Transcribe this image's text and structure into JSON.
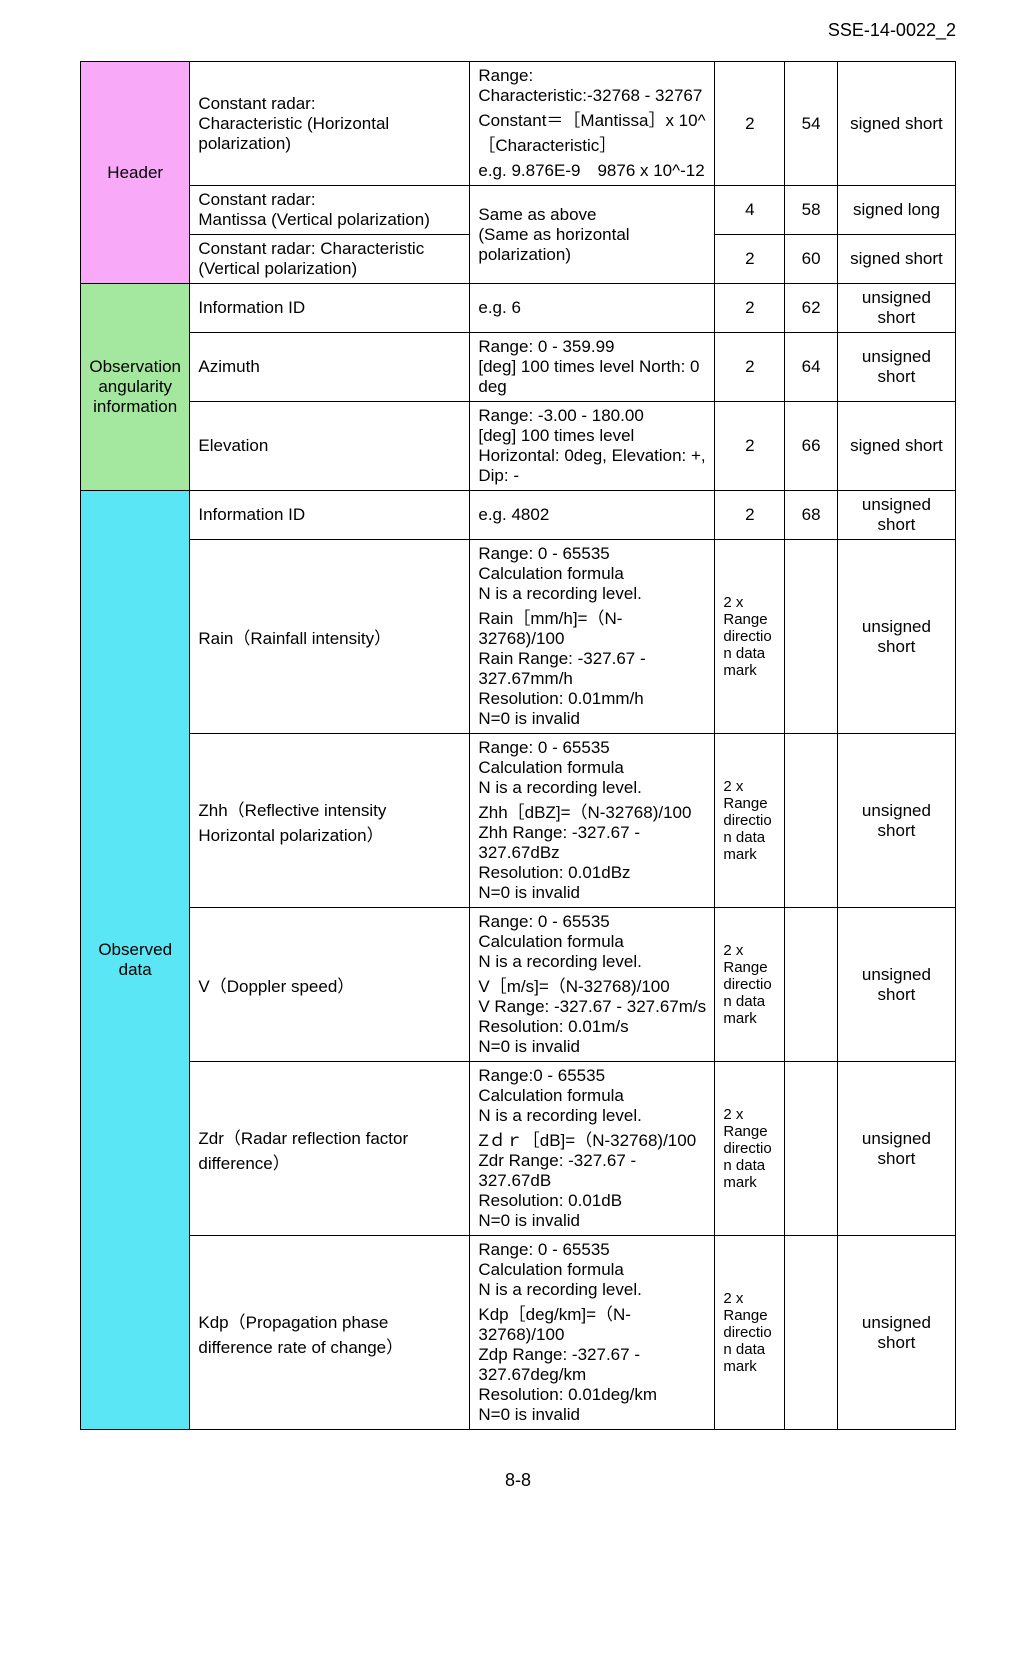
{
  "doc_id": "SSE-14-0022_2",
  "page_number": "8-8",
  "sections": {
    "header": {
      "label": "Header",
      "bg": "#f8a9f8",
      "rows": [
        {
          "param": "Constant radar:\nCharacteristic (Horizontal polarization)",
          "desc": "Range:\nCharacteristic:-32768 - 32767\nConstant＝［Mantissa］x 10^［Characteristic］\ne.g. 9.876E-9　9876 x 10^-12",
          "size": "2",
          "offset": "54",
          "type": "signed short"
        },
        {
          "param": "Constant radar:\nMantissa (Vertical polarization)",
          "desc_rowspan": true,
          "desc": "Same as above\n(Same as horizontal polarization)",
          "size": "4",
          "offset": "58",
          "type": "signed long"
        },
        {
          "param": "Constant radar: Characteristic (Vertical polarization)",
          "size": "2",
          "offset": "60",
          "type": "signed short"
        }
      ]
    },
    "angularity": {
      "label": "Observation angularity information",
      "bg": "#a4e79f",
      "rows": [
        {
          "param": "Information ID",
          "desc": "e.g. 6",
          "size": "2",
          "offset": "62",
          "type": "unsigned short"
        },
        {
          "param": "Azimuth",
          "desc": "Range: 0 - 359.99\n[deg] 100 times level  North: 0 deg",
          "size": "2",
          "offset": "64",
          "type": "unsigned short"
        },
        {
          "param": "Elevation",
          "desc": "Range: -3.00 - 180.00\n[deg] 100 times level\nHorizontal: 0deg, Elevation: +, Dip: -",
          "size": "2",
          "offset": "66",
          "type": "signed short"
        }
      ]
    },
    "observed": {
      "label": "Observed data",
      "bg": "#5ae6f5",
      "rows": [
        {
          "param": "Information ID",
          "desc": "e.g. 4802",
          "size": "2",
          "offset": "68",
          "type": "unsigned short"
        },
        {
          "param": "Rain（Rainfall intensity）",
          "desc": "Range: 0 - 65535\nCalculation formula\nN is a recording level.\nRain［mm/h]=（N-32768)/100\nRain Range: -327.67 - 327.67mm/h\nResolution: 0.01mm/h\nN=0 is invalid",
          "size": "2 x Range direction data mark",
          "offset": "",
          "type": "unsigned short"
        },
        {
          "param": "Zhh（Reflective intensity  Horizontal polarization）",
          "desc": "Range: 0 - 65535\nCalculation formula\nN is a recording level.\nZhh［dBZ]=（N-32768)/100\nZhh Range: -327.67 - 327.67dBz\nResolution: 0.01dBz\nN=0 is invalid",
          "size": "2 x Range direction data mark",
          "offset": "",
          "type": "unsigned short"
        },
        {
          "param": "V（Doppler speed）",
          "desc": "Range: 0 - 65535\nCalculation formula\nN is a recording level.\nV［m/s]=（N-32768)/100\nV Range: -327.67 - 327.67m/s\nResolution: 0.01m/s\nN=0 is invalid",
          "size": "2 x Range direction data mark",
          "offset": "",
          "type": "unsigned short"
        },
        {
          "param": "Zdr（Radar reflection factor difference）",
          "desc": "Range:0 - 65535\nCalculation formula\nN is a recording level.\nZｄｒ［dB]=（N-32768)/100\nZdr Range: -327.67 - 327.67dB\nResolution: 0.01dB\nN=0 is invalid",
          "size": "2 x Range direction data mark",
          "offset": "",
          "type": "unsigned short"
        },
        {
          "param": "Kdp（Propagation phase difference rate of change）",
          "desc": "Range: 0 - 65535\nCalculation formula\nN is a recording level.\nKdp［deg/km]=（N-32768)/100\nZdp Range: -327.67 - 327.67deg/km\nResolution: 0.01deg/km\nN=0 is invalid",
          "size": "2 x Range direction data mark",
          "offset": "",
          "type": "unsigned short"
        }
      ]
    }
  }
}
